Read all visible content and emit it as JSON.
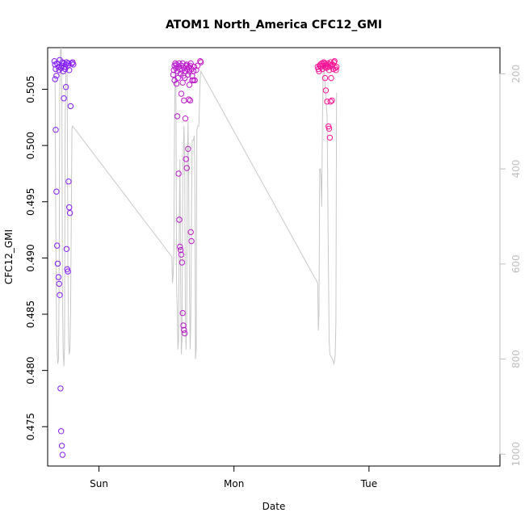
{
  "chart_data": {
    "type": "scatter",
    "title": "ATOM1 North_America CFC12_GMI",
    "xlabel": "Date",
    "ylabel": "CFC12_GMI",
    "x_ticks": [
      {
        "label": "Sun",
        "day": 1.0
      },
      {
        "label": "Mon",
        "day": 2.0
      },
      {
        "label": "Tue",
        "day": 3.0
      }
    ],
    "xlim": [
      0.62,
      3.97
    ],
    "ylim": [
      0.4715,
      0.5087
    ],
    "y_ticks": [
      "0.475",
      "0.480",
      "0.485",
      "0.490",
      "0.495",
      "0.500",
      "0.505"
    ],
    "y2_ticks": [
      "200",
      "400",
      "600",
      "800",
      "1000"
    ],
    "y2lim": [
      1025,
      145
    ],
    "y2_axis_color": "#bebebe",
    "marker": "open-circle",
    "series": [
      {
        "color_start": "#7f1fff",
        "color_end": "#ff1493",
        "points": [
          [
            0.67,
            0.5075
          ],
          [
            0.675,
            0.5072
          ],
          [
            0.68,
            0.5068
          ],
          [
            0.685,
            0.5062
          ],
          [
            0.69,
            0.5073
          ],
          [
            0.7,
            0.507
          ],
          [
            0.705,
            0.5067
          ],
          [
            0.71,
            0.5076
          ],
          [
            0.72,
            0.5069
          ],
          [
            0.725,
            0.5071
          ],
          [
            0.73,
            0.5074
          ],
          [
            0.735,
            0.5066
          ],
          [
            0.74,
            0.5073
          ],
          [
            0.745,
            0.507
          ],
          [
            0.75,
            0.5068
          ],
          [
            0.755,
            0.5072
          ],
          [
            0.76,
            0.5074
          ],
          [
            0.77,
            0.5071
          ],
          [
            0.775,
            0.5073
          ],
          [
            0.78,
            0.5067
          ],
          [
            0.8,
            0.5073
          ],
          [
            0.805,
            0.5074
          ],
          [
            0.81,
            0.5072
          ],
          [
            0.675,
            0.5059
          ],
          [
            0.68,
            0.5014
          ],
          [
            0.685,
            0.4959
          ],
          [
            0.69,
            0.4911
          ],
          [
            0.695,
            0.4895
          ],
          [
            0.7,
            0.4883
          ],
          [
            0.705,
            0.4877
          ],
          [
            0.71,
            0.4867
          ],
          [
            0.715,
            0.4784
          ],
          [
            0.72,
            0.4746
          ],
          [
            0.725,
            0.4733
          ],
          [
            0.73,
            0.4725
          ],
          [
            0.74,
            0.5042
          ],
          [
            0.755,
            0.5052
          ],
          [
            0.76,
            0.4908
          ],
          [
            0.765,
            0.489
          ],
          [
            0.77,
            0.4888
          ],
          [
            0.775,
            0.4968
          ],
          [
            0.78,
            0.4945
          ],
          [
            0.785,
            0.494
          ],
          [
            0.79,
            0.5035
          ],
          [
            1.55,
            0.5063
          ],
          [
            1.555,
            0.5067
          ],
          [
            1.56,
            0.5071
          ],
          [
            1.565,
            0.5073
          ],
          [
            1.57,
            0.5069
          ],
          [
            1.575,
            0.5072
          ],
          [
            1.58,
            0.5066
          ],
          [
            1.585,
            0.506
          ],
          [
            1.59,
            0.507
          ],
          [
            1.595,
            0.5073
          ],
          [
            1.6,
            0.5068
          ],
          [
            1.605,
            0.5064
          ],
          [
            1.61,
            0.5071
          ],
          [
            1.615,
            0.5067
          ],
          [
            1.62,
            0.5073
          ],
          [
            1.625,
            0.5062
          ],
          [
            1.63,
            0.5069
          ],
          [
            1.635,
            0.506
          ],
          [
            1.64,
            0.5066
          ],
          [
            1.645,
            0.5071
          ],
          [
            1.65,
            0.5072
          ],
          [
            1.655,
            0.5068
          ],
          [
            1.66,
            0.5063
          ],
          [
            1.665,
            0.507
          ],
          [
            1.67,
            0.5066
          ],
          [
            1.675,
            0.5071
          ],
          [
            1.68,
            0.5073
          ],
          [
            1.685,
            0.5068
          ],
          [
            1.69,
            0.5062
          ],
          [
            1.7,
            0.5066
          ],
          [
            1.705,
            0.507
          ],
          [
            1.71,
            0.5058
          ],
          [
            1.72,
            0.5067
          ],
          [
            1.73,
            0.5071
          ],
          [
            1.75,
            0.5075
          ],
          [
            1.755,
            0.5074
          ],
          [
            1.56,
            0.5058
          ],
          [
            1.575,
            0.5055
          ],
          [
            1.58,
            0.5026
          ],
          [
            1.59,
            0.4975
          ],
          [
            1.595,
            0.4934
          ],
          [
            1.6,
            0.491
          ],
          [
            1.605,
            0.4907
          ],
          [
            1.61,
            0.4903
          ],
          [
            1.615,
            0.4896
          ],
          [
            1.62,
            0.4851
          ],
          [
            1.625,
            0.484
          ],
          [
            1.63,
            0.4836
          ],
          [
            1.635,
            0.4833
          ],
          [
            1.62,
            0.5056
          ],
          [
            1.63,
            0.504
          ],
          [
            1.64,
            0.5024
          ],
          [
            1.645,
            0.4988
          ],
          [
            1.65,
            0.498
          ],
          [
            1.66,
            0.4997
          ],
          [
            1.665,
            0.5041
          ],
          [
            1.67,
            0.5054
          ],
          [
            1.675,
            0.504
          ],
          [
            1.68,
            0.4923
          ],
          [
            1.685,
            0.4915
          ],
          [
            1.69,
            0.5058
          ],
          [
            1.7,
            0.5058
          ],
          [
            1.61,
            0.5046
          ],
          [
            2.62,
            0.507
          ],
          [
            2.625,
            0.5068
          ],
          [
            2.63,
            0.5066
          ],
          [
            2.635,
            0.5071
          ],
          [
            2.64,
            0.5072
          ],
          [
            2.645,
            0.507
          ],
          [
            2.65,
            0.5073
          ],
          [
            2.655,
            0.5068
          ],
          [
            2.66,
            0.5071
          ],
          [
            2.665,
            0.5074
          ],
          [
            2.67,
            0.5073
          ],
          [
            2.675,
            0.507
          ],
          [
            2.68,
            0.5072
          ],
          [
            2.685,
            0.5069
          ],
          [
            2.69,
            0.5071
          ],
          [
            2.695,
            0.5073
          ],
          [
            2.7,
            0.507
          ],
          [
            2.705,
            0.5067
          ],
          [
            2.71,
            0.5072
          ],
          [
            2.715,
            0.5074
          ],
          [
            2.72,
            0.5071
          ],
          [
            2.73,
            0.5072
          ],
          [
            2.735,
            0.5068
          ],
          [
            2.74,
            0.5074
          ],
          [
            2.745,
            0.5075
          ],
          [
            2.75,
            0.5069
          ],
          [
            2.755,
            0.5067
          ],
          [
            2.76,
            0.507
          ],
          [
            2.675,
            0.506
          ],
          [
            2.68,
            0.5049
          ],
          [
            2.69,
            0.5039
          ],
          [
            2.7,
            0.5017
          ],
          [
            2.705,
            0.5015
          ],
          [
            2.71,
            0.5007
          ],
          [
            2.715,
            0.5039
          ],
          [
            2.72,
            0.506
          ],
          [
            2.725,
            0.504
          ]
        ]
      }
    ],
    "pressure_trace": {
      "color": "#c8c8c8",
      "points": [
        [
          0.675,
          205
        ],
        [
          0.68,
          500
        ],
        [
          0.685,
          720
        ],
        [
          0.69,
          780
        ],
        [
          0.695,
          810
        ],
        [
          0.7,
          800
        ],
        [
          0.705,
          640
        ],
        [
          0.71,
          230
        ],
        [
          0.715,
          150
        ],
        [
          0.72,
          145
        ],
        [
          0.725,
          250
        ],
        [
          0.73,
          680
        ],
        [
          0.735,
          785
        ],
        [
          0.74,
          815
        ],
        [
          0.745,
          770
        ],
        [
          0.75,
          300
        ],
        [
          0.755,
          195
        ],
        [
          0.76,
          170
        ],
        [
          0.765,
          200
        ],
        [
          0.77,
          600
        ],
        [
          0.775,
          760
        ],
        [
          0.78,
          790
        ],
        [
          0.785,
          780
        ],
        [
          0.79,
          700
        ],
        [
          0.8,
          315
        ],
        [
          0.805,
          310
        ],
        [
          1.54,
          585
        ],
        [
          1.545,
          640
        ],
        [
          1.55,
          620
        ],
        [
          1.555,
          560
        ],
        [
          1.56,
          300
        ],
        [
          1.565,
          180
        ],
        [
          1.57,
          200
        ],
        [
          1.575,
          640
        ],
        [
          1.58,
          700
        ],
        [
          1.585,
          780
        ],
        [
          1.59,
          760
        ],
        [
          1.595,
          500
        ],
        [
          1.6,
          380
        ],
        [
          1.605,
          650
        ],
        [
          1.61,
          790
        ],
        [
          1.615,
          760
        ],
        [
          1.62,
          420
        ],
        [
          1.63,
          310
        ],
        [
          1.635,
          400
        ],
        [
          1.64,
          700
        ],
        [
          1.645,
          780
        ],
        [
          1.65,
          720
        ],
        [
          1.655,
          380
        ],
        [
          1.66,
          300
        ],
        [
          1.665,
          460
        ],
        [
          1.67,
          640
        ],
        [
          1.675,
          780
        ],
        [
          1.68,
          720
        ],
        [
          1.685,
          520
        ],
        [
          1.69,
          340
        ],
        [
          1.7,
          340
        ],
        [
          1.705,
          330
        ],
        [
          1.71,
          400
        ],
        [
          1.715,
          800
        ],
        [
          1.72,
          780
        ],
        [
          1.725,
          320
        ],
        [
          1.73,
          310
        ],
        [
          1.74,
          310
        ],
        [
          1.75,
          210
        ],
        [
          1.755,
          195
        ],
        [
          2.62,
          640
        ],
        [
          2.625,
          740
        ],
        [
          2.63,
          700
        ],
        [
          2.635,
          400
        ],
        [
          2.64,
          400
        ],
        [
          2.645,
          420
        ],
        [
          2.65,
          480
        ],
        [
          2.655,
          300
        ],
        [
          2.66,
          200
        ],
        [
          2.665,
          185
        ],
        [
          2.67,
          200
        ],
        [
          2.68,
          250
        ],
        [
          2.69,
          290
        ],
        [
          2.7,
          620
        ],
        [
          2.705,
          760
        ],
        [
          2.71,
          790
        ],
        [
          2.72,
          795
        ],
        [
          2.73,
          800
        ],
        [
          2.74,
          810
        ],
        [
          2.745,
          805
        ],
        [
          2.75,
          790
        ],
        [
          2.755,
          720
        ],
        [
          2.76,
          240
        ]
      ]
    },
    "grid": false,
    "legend": "none"
  }
}
